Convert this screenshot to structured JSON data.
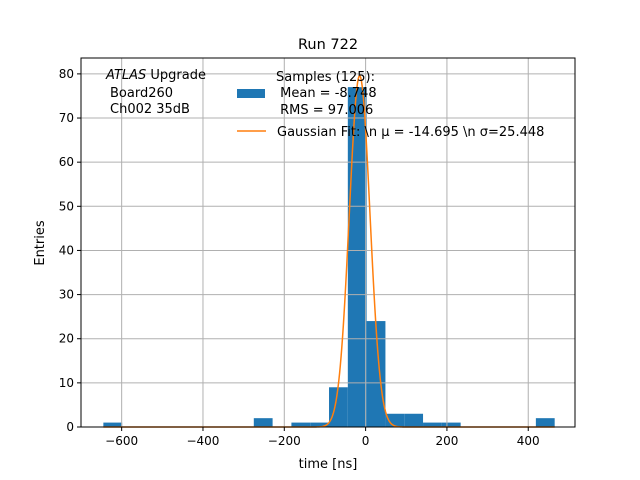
{
  "chart_data": {
    "type": "bar",
    "title": "Run 722",
    "xlabel": "time [ns]",
    "ylabel": "Entries",
    "xlim": [
      -700,
      515
    ],
    "ylim": [
      0,
      83.6
    ],
    "xticks": [
      -600,
      -400,
      -200,
      0,
      200,
      400
    ],
    "xtick_labels": [
      "−600",
      "−400",
      "−200",
      "0",
      "200",
      "400"
    ],
    "yticks": [
      0,
      10,
      20,
      30,
      40,
      50,
      60,
      70,
      80
    ],
    "ytick_labels": [
      "0",
      "10",
      "20",
      "30",
      "40",
      "50",
      "60",
      "70",
      "80"
    ],
    "grid": true,
    "bin_start": -645,
    "bin_width": 46.25,
    "bin_counts": [
      1,
      0,
      0,
      0,
      0,
      0,
      0,
      0,
      2,
      0,
      1,
      1,
      9,
      77,
      24,
      3,
      3,
      1,
      1,
      0,
      0,
      0,
      0,
      2
    ],
    "fit": {
      "type": "gaussian",
      "amplitude": 79.6,
      "mu": -14.695,
      "sigma": 25.448
    },
    "annotation": {
      "italic": "ATLAS",
      "line1_rest": " Upgrade",
      "line2": "Board260",
      "line3": "Ch002 35dB"
    },
    "legend": {
      "placement": "top-center",
      "entries": [
        {
          "lines": [
            "Samples (125):",
            " Mean = -8.748",
            " RMS = 97.006"
          ],
          "color": "#1f77b4",
          "kind": "patch"
        },
        {
          "lines": [
            "Gaussian Fit: \\n μ = -14.695 \\n σ=25.448"
          ],
          "color": "#ff7f0e",
          "kind": "line"
        }
      ]
    }
  }
}
